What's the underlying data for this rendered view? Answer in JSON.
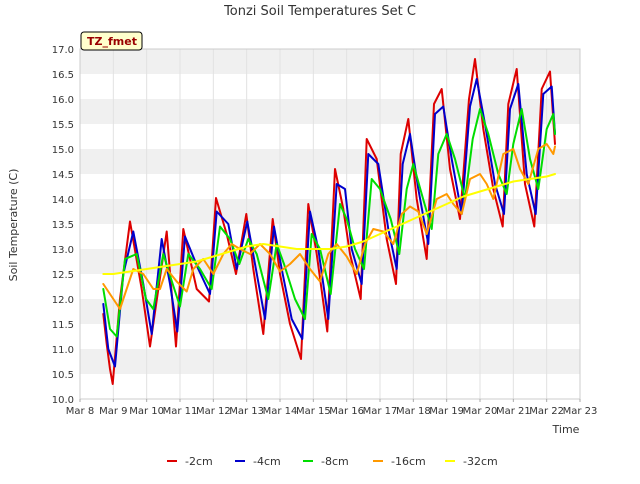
{
  "chart_data": {
    "type": "line",
    "title": "Tonzi Soil Temperatures Set C",
    "xlabel": "Time",
    "ylabel": "Soil Temperature (C)",
    "badge": "TZ_fmet",
    "xlim": [
      8,
      23
    ],
    "ylim": [
      10.0,
      17.0
    ],
    "x_ticks": [
      8,
      9,
      10,
      11,
      12,
      13,
      14,
      15,
      16,
      17,
      18,
      19,
      20,
      21,
      22,
      23
    ],
    "x_tick_labels": [
      "Mar 8",
      "Mar 9",
      "Mar 10",
      "Mar 11",
      "Mar 12",
      "Mar 13",
      "Mar 14",
      "Mar 15",
      "Mar 16",
      "Mar 17",
      "Mar 18",
      "Mar 19",
      "Mar 20",
      "Mar 21",
      "Mar 22",
      "Mar 23"
    ],
    "y_ticks": [
      10.0,
      10.5,
      11.0,
      11.5,
      12.0,
      12.5,
      13.0,
      13.5,
      14.0,
      14.5,
      15.0,
      15.5,
      16.0,
      16.5,
      17.0
    ],
    "y_tick_labels": [
      "10.0",
      "10.5",
      "11.0",
      "11.5",
      "12.0",
      "12.5",
      "13.0",
      "13.5",
      "14.0",
      "14.5",
      "15.0",
      "15.5",
      "16.0",
      "16.5",
      "17.0"
    ],
    "grid": "horizontal bands",
    "legend_position": "bottom",
    "series": [
      {
        "name": "-2cm",
        "color": "#dd0000",
        "x": [
          8.7,
          8.8,
          8.9,
          8.98,
          9.2,
          9.5,
          9.85,
          10.1,
          10.6,
          10.88,
          11.1,
          11.5,
          11.87,
          12.08,
          12.4,
          12.68,
          12.99,
          13.2,
          13.5,
          13.78,
          14.0,
          14.3,
          14.63,
          14.85,
          15.1,
          15.42,
          15.65,
          15.9,
          16.1,
          16.42,
          16.6,
          16.9,
          17.2,
          17.48,
          17.62,
          17.85,
          18.1,
          18.4,
          18.62,
          18.85,
          19.1,
          19.4,
          19.67,
          19.85,
          20.1,
          20.4,
          20.68,
          20.85,
          21.1,
          21.35,
          21.63,
          21.85,
          22.1,
          22.25
        ],
        "y": [
          11.7,
          11.1,
          10.6,
          10.3,
          12.0,
          13.55,
          12.2,
          11.05,
          13.35,
          11.05,
          13.4,
          12.2,
          11.95,
          14.02,
          13.3,
          12.5,
          13.7,
          12.6,
          11.3,
          13.6,
          12.5,
          11.5,
          10.8,
          13.9,
          12.9,
          11.35,
          14.6,
          13.8,
          12.9,
          12.0,
          15.2,
          14.8,
          13.2,
          12.3,
          14.9,
          15.6,
          14.0,
          12.8,
          15.9,
          16.2,
          14.6,
          13.6,
          16.0,
          16.8,
          15.4,
          14.2,
          13.45,
          15.9,
          16.6,
          14.3,
          13.45,
          16.2,
          16.55,
          15.1
        ]
      },
      {
        "name": "-4cm",
        "color": "#0000cc",
        "x": [
          8.7,
          8.85,
          9.05,
          9.3,
          9.6,
          9.9,
          10.15,
          10.45,
          10.7,
          10.92,
          11.15,
          11.55,
          11.9,
          12.1,
          12.45,
          12.7,
          13.02,
          13.25,
          13.55,
          13.82,
          14.05,
          14.35,
          14.67,
          14.9,
          15.15,
          15.45,
          15.7,
          15.95,
          16.15,
          16.45,
          16.65,
          16.95,
          17.25,
          17.5,
          17.68,
          17.9,
          18.15,
          18.45,
          18.65,
          18.9,
          19.15,
          19.45,
          19.7,
          19.9,
          20.15,
          20.45,
          20.72,
          20.9,
          21.15,
          21.4,
          21.67,
          21.9,
          22.15,
          22.25
        ],
        "y": [
          11.9,
          11.0,
          10.65,
          12.5,
          13.35,
          12.3,
          11.3,
          13.2,
          12.3,
          11.35,
          13.25,
          12.6,
          12.1,
          13.75,
          13.5,
          12.6,
          13.55,
          12.7,
          11.6,
          13.45,
          12.6,
          11.6,
          11.2,
          13.75,
          13.0,
          11.6,
          14.3,
          14.2,
          13.0,
          12.3,
          14.9,
          14.7,
          13.4,
          12.6,
          14.7,
          15.3,
          14.2,
          13.1,
          15.7,
          15.85,
          14.8,
          13.7,
          15.85,
          16.4,
          15.5,
          14.3,
          13.7,
          15.8,
          16.3,
          14.5,
          13.7,
          16.1,
          16.25,
          15.3
        ]
      },
      {
        "name": "-8cm",
        "color": "#00dd00",
        "x": [
          8.7,
          8.9,
          9.1,
          9.35,
          9.7,
          9.98,
          10.2,
          10.5,
          10.78,
          11.0,
          11.25,
          11.6,
          11.95,
          12.2,
          12.5,
          12.78,
          13.05,
          13.3,
          13.65,
          13.9,
          14.12,
          14.45,
          14.75,
          14.95,
          15.2,
          15.52,
          15.8,
          16.0,
          16.25,
          16.52,
          16.75,
          17.0,
          17.32,
          17.58,
          17.8,
          18.0,
          18.25,
          18.55,
          18.75,
          19.0,
          19.25,
          19.55,
          19.78,
          20.0,
          20.25,
          20.55,
          20.8,
          21.0,
          21.25,
          21.5,
          21.75,
          22.0,
          22.2,
          22.25
        ],
        "y": [
          12.2,
          11.4,
          11.25,
          12.8,
          12.9,
          12.0,
          11.8,
          12.9,
          12.3,
          11.85,
          12.9,
          12.6,
          12.2,
          13.45,
          13.2,
          12.7,
          13.2,
          12.9,
          12.0,
          13.1,
          12.7,
          12.0,
          11.6,
          13.3,
          13.0,
          12.1,
          13.9,
          13.6,
          13.0,
          12.6,
          14.4,
          14.2,
          13.6,
          12.9,
          14.2,
          14.7,
          14.1,
          13.4,
          14.9,
          15.3,
          14.8,
          14.0,
          15.2,
          15.8,
          15.3,
          14.5,
          14.1,
          15.1,
          15.8,
          14.8,
          14.2,
          15.4,
          15.7,
          15.3
        ]
      },
      {
        "name": "-16cm",
        "color": "#ff9900",
        "x": [
          8.7,
          9.0,
          9.2,
          9.6,
          9.9,
          10.2,
          10.4,
          10.6,
          10.9,
          11.2,
          11.4,
          11.7,
          12.0,
          12.3,
          12.55,
          12.8,
          13.1,
          13.4,
          13.7,
          14.0,
          14.3,
          14.6,
          14.9,
          15.2,
          15.45,
          15.7,
          16.0,
          16.3,
          16.55,
          16.8,
          17.1,
          17.4,
          17.65,
          17.9,
          18.15,
          18.4,
          18.7,
          19.0,
          19.2,
          19.45,
          19.7,
          20.0,
          20.2,
          20.4,
          20.7,
          21.0,
          21.2,
          21.45,
          21.75,
          22.0,
          22.2,
          22.25
        ],
        "y": [
          12.3,
          12.0,
          11.8,
          12.6,
          12.5,
          12.2,
          12.2,
          12.6,
          12.35,
          12.15,
          12.6,
          12.8,
          12.5,
          12.9,
          13.1,
          13.0,
          12.9,
          13.1,
          12.9,
          12.55,
          12.7,
          12.9,
          12.6,
          12.35,
          12.9,
          13.1,
          12.85,
          12.5,
          13.1,
          13.4,
          13.35,
          13.1,
          13.7,
          13.85,
          13.75,
          13.3,
          14.0,
          14.1,
          13.9,
          13.7,
          14.4,
          14.5,
          14.3,
          14.0,
          14.9,
          15.0,
          14.6,
          14.3,
          15.0,
          15.1,
          14.9,
          15.05
        ]
      },
      {
        "name": "-32cm",
        "color": "#ffff00",
        "x": [
          8.7,
          9.0,
          9.5,
          10.0,
          10.5,
          11.0,
          11.5,
          12.0,
          12.5,
          13.0,
          13.5,
          14.0,
          14.5,
          15.0,
          15.5,
          16.0,
          16.5,
          17.0,
          17.5,
          18.0,
          18.5,
          19.0,
          19.5,
          20.0,
          20.5,
          21.0,
          21.5,
          22.0,
          22.25
        ],
        "y": [
          12.5,
          12.5,
          12.55,
          12.6,
          12.65,
          12.7,
          12.75,
          12.85,
          12.95,
          13.05,
          13.1,
          13.05,
          13.0,
          13.0,
          13.0,
          13.05,
          13.15,
          13.3,
          13.45,
          13.6,
          13.75,
          13.9,
          14.05,
          14.15,
          14.25,
          14.35,
          14.4,
          14.45,
          14.5
        ]
      }
    ]
  }
}
